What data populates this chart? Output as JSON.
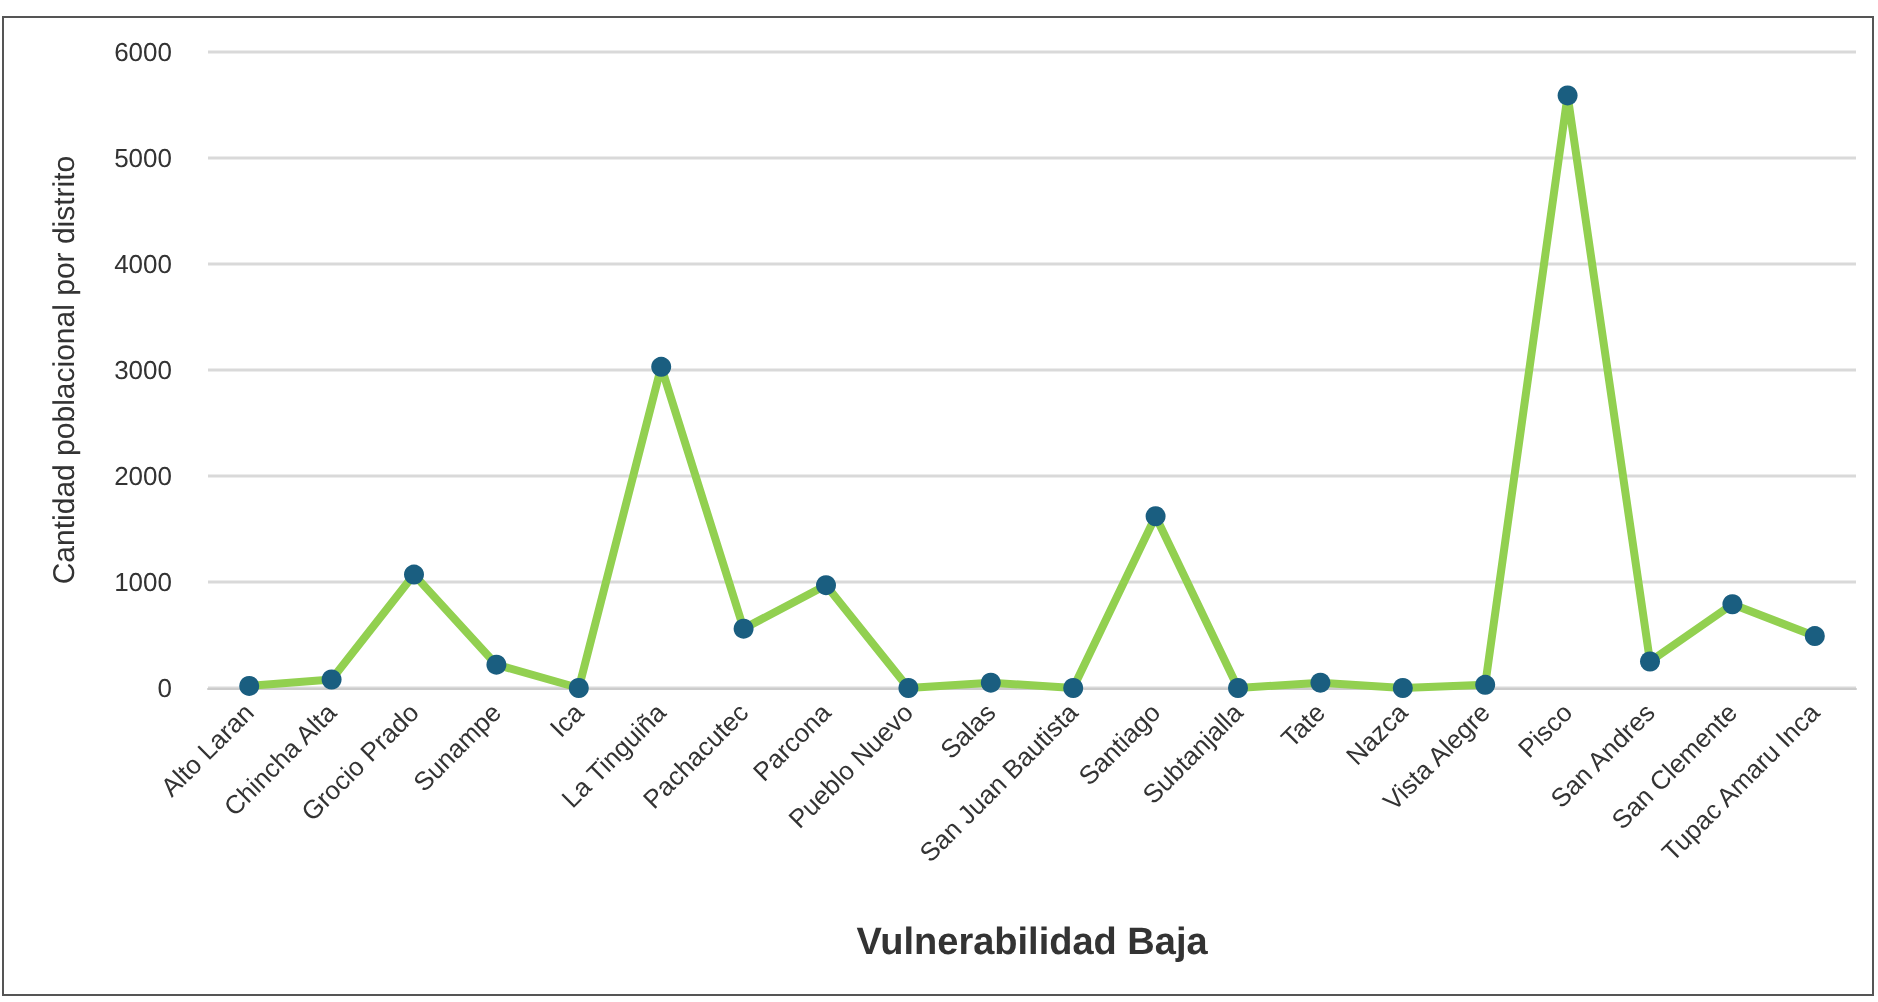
{
  "chart_data": {
    "type": "line",
    "xlabel": "Vulnerabilidad Baja",
    "ylabel": "Cantidad poblacional por distrito",
    "categories": [
      "Alto Laran",
      "Chincha Alta",
      "Grocio Prado",
      "Sunampe",
      "Ica",
      "La Tinguiña",
      "Pachacutec",
      "Parcona",
      "Pueblo Nuevo",
      "Salas",
      "San Juan Bautista",
      "Santiago",
      "Subtanjalla",
      "Tate",
      "Nazca",
      "Vista Alegre",
      "Pisco",
      "San Andres",
      "San Clemente",
      "Tupac Amaru Inca"
    ],
    "series": [
      {
        "color": "#92d050",
        "colors": [
          "#1a5e80",
          "#1a5e80",
          "#1a5e80",
          "#1a5e80",
          "#1a5e80",
          "#1a5e80",
          "#1a5e80",
          "#1a5e80",
          "#1a5e80",
          "#1a5e80",
          "#1a5e80",
          "#1a5e80",
          "#1a5e80",
          "#1a5e80",
          "#1a5e80",
          "#1a5e80",
          "#1a5e80",
          "#1a5e80",
          "#1a5e80",
          "#1a5e80"
        ],
        "values": [
          20,
          80,
          1070,
          220,
          0,
          3030,
          560,
          970,
          0,
          50,
          0,
          1620,
          0,
          50,
          0,
          30,
          5590,
          250,
          790,
          490
        ]
      }
    ],
    "ylim": [
      0,
      6000
    ],
    "yticks": [
      0,
      1000,
      2000,
      3000,
      4000,
      5000,
      6000
    ],
    "grid": "y",
    "marker": "circle",
    "line_style": "solid"
  }
}
